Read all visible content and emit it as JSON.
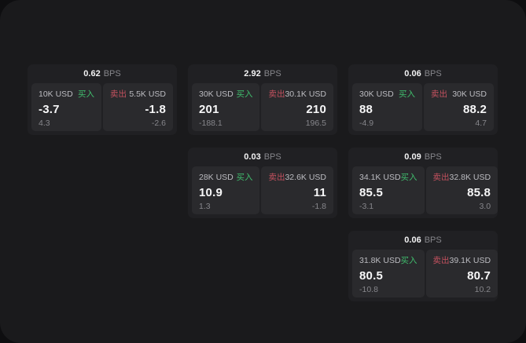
{
  "labels": {
    "bps": "BPS",
    "buy": "买入",
    "sell": "卖出"
  },
  "colors": {
    "page_background": "#0e0e10",
    "window_background": "#1a1a1c",
    "card_background": "#202023",
    "panel_background": "#2a2a2d",
    "buy_green": "#40bd6d",
    "sell_red": "#c4515f",
    "primary_text": "#f2f2f3",
    "muted_text": "#86868b"
  },
  "cards": [
    {
      "bps": "0.62",
      "buy": {
        "size": "10K USD",
        "price": "-3.7",
        "delta": "4.3"
      },
      "sell": {
        "size": "5.5K USD",
        "price": "-1.8",
        "delta": "-2.6"
      }
    },
    {
      "bps": "2.92",
      "buy": {
        "size": "30K USD",
        "price": "201",
        "delta": "-188.1"
      },
      "sell": {
        "size": "30.1K USD",
        "price": "210",
        "delta": "196.5"
      }
    },
    {
      "bps": "0.06",
      "buy": {
        "size": "30K USD",
        "price": "88",
        "delta": "-4.9"
      },
      "sell": {
        "size": "30K USD",
        "price": "88.2",
        "delta": "4.7"
      }
    },
    {
      "bps": "0.03",
      "buy": {
        "size": "28K USD",
        "price": "10.9",
        "delta": "1.3"
      },
      "sell": {
        "size": "32.6K USD",
        "price": "11",
        "delta": "-1.8"
      }
    },
    {
      "bps": "0.09",
      "buy": {
        "size": "34.1K USD",
        "price": "85.5",
        "delta": "-3.1"
      },
      "sell": {
        "size": "32.8K USD",
        "price": "85.8",
        "delta": "3.0"
      }
    },
    {
      "bps": "0.06",
      "buy": {
        "size": "31.8K USD",
        "price": "80.5",
        "delta": "-10.8"
      },
      "sell": {
        "size": "39.1K USD",
        "price": "80.7",
        "delta": "10.2"
      }
    }
  ]
}
